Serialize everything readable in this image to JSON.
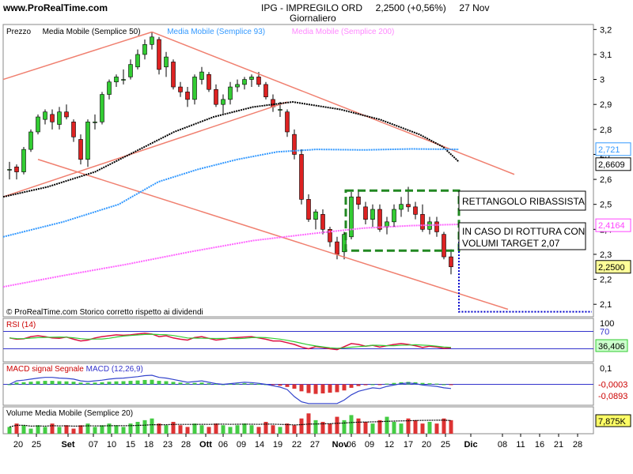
{
  "header": {
    "site": "www.ProRealTime.com",
    "ticker_line": "IPG - IMPREGILO ORD     2,2500 (+0,56%)     27 Nov",
    "period": "Giornaliero"
  },
  "main_panel": {
    "legend": [
      {
        "text": "Prezzo",
        "color": "#000000"
      },
      {
        "text": "Media Mobile (Semplice 50)",
        "color": "#000000"
      },
      {
        "text": "Media Mobile (Semplice 93)",
        "color": "#3399ff"
      },
      {
        "text": "Media Mobile (Semplice 200)",
        "color": "#ff88ff"
      }
    ],
    "footer_note": "© ProRealTime.com  Storico corretto rispetto ai dividendi",
    "annotation_1": "RETTANGOLO RIBASSISTA",
    "annotation_2": "IN CASO DI ROTTURA CON VOLUMI TARGET 2,07",
    "y_ticks": [
      "3,2",
      "3,1",
      "3",
      "2,9",
      "2,8",
      "2,7",
      "2,6",
      "2,5",
      "2,4",
      "2,3",
      "2,2",
      "2,1"
    ],
    "price_tags": [
      {
        "text": "2,721",
        "color": "#3399ff"
      },
      {
        "text": "2,6609",
        "color": "#000000"
      },
      {
        "text": "2,4164",
        "color": "#ff44ff"
      },
      {
        "text": "2,2500",
        "color": "#000000"
      }
    ]
  },
  "rsi_panel": {
    "title": "RSI (14)",
    "ticks": [
      "100",
      "70",
      "36,406"
    ]
  },
  "macd_panel": {
    "title_parts": [
      "MACD signal ",
      "Segnale",
      " MACD (12,26,9)"
    ],
    "ticks": [
      "0,1",
      "-0,0003",
      "-0,0893"
    ]
  },
  "volume_panel": {
    "title": "Volume  Media Mobile (Semplice 20)",
    "ticks": [
      "7,875K"
    ]
  },
  "x_axis": {
    "labels": [
      "20",
      "25",
      "Set",
      "07",
      "10",
      "15",
      "18",
      "23",
      "28",
      "Ott",
      "06",
      "09",
      "14",
      "19",
      "22",
      "27",
      "Nov",
      "06",
      "09",
      "12",
      "17",
      "20",
      "25",
      "Dic",
      "08",
      "11",
      "16",
      "21",
      "28"
    ]
  },
  "chart_data": {
    "type": "candlestick",
    "title": "IPG - IMPREGILO ORD",
    "ylim": [
      2.05,
      3.22
    ],
    "last_price": 2.25,
    "moving_averages": {
      "sma50": 2.6609,
      "sma93": 2.721,
      "sma200": 2.4164
    },
    "rsi14": 36.406,
    "rsi_levels": [
      70,
      30
    ],
    "macd": {
      "line": -0.0003,
      "signal": -0.0893
    },
    "volume_sma20": "7,875K",
    "target": 2.07,
    "candles": [
      [
        2.64,
        2.67,
        2.6,
        2.64
      ],
      [
        2.65,
        2.66,
        2.6,
        2.63
      ],
      [
        2.63,
        2.73,
        2.62,
        2.72
      ],
      [
        2.72,
        2.8,
        2.71,
        2.79
      ],
      [
        2.79,
        2.86,
        2.78,
        2.85
      ],
      [
        2.84,
        2.88,
        2.82,
        2.87
      ],
      [
        2.86,
        2.88,
        2.8,
        2.83
      ],
      [
        2.82,
        2.89,
        2.8,
        2.87
      ],
      [
        2.87,
        2.9,
        2.84,
        2.85
      ],
      [
        2.83,
        2.84,
        2.75,
        2.77
      ],
      [
        2.76,
        2.78,
        2.66,
        2.68
      ],
      [
        2.68,
        2.84,
        2.65,
        2.83
      ],
      [
        2.83,
        2.86,
        2.8,
        2.83
      ],
      [
        2.83,
        2.95,
        2.82,
        2.94
      ],
      [
        2.94,
        3.0,
        2.92,
        2.99
      ],
      [
        2.99,
        3.02,
        2.97,
        3.01
      ],
      [
        3.0,
        3.04,
        2.98,
        3.0
      ],
      [
        3.01,
        3.08,
        3.0,
        3.06
      ],
      [
        3.05,
        3.12,
        3.04,
        3.1
      ],
      [
        3.1,
        3.16,
        3.08,
        3.14
      ],
      [
        3.14,
        3.19,
        3.12,
        3.17
      ],
      [
        3.16,
        3.17,
        3.02,
        3.04
      ],
      [
        3.05,
        3.11,
        3.01,
        3.09
      ],
      [
        3.07,
        3.08,
        2.96,
        2.97
      ],
      [
        2.97,
        2.99,
        2.93,
        2.95
      ],
      [
        2.95,
        2.97,
        2.89,
        2.92
      ],
      [
        2.92,
        3.02,
        2.9,
        3.01
      ],
      [
        3.0,
        3.05,
        2.98,
        3.03
      ],
      [
        3.02,
        3.03,
        2.95,
        2.96
      ],
      [
        2.96,
        2.98,
        2.89,
        2.9
      ],
      [
        2.9,
        2.94,
        2.86,
        2.92
      ],
      [
        2.92,
        2.99,
        2.9,
        2.97
      ],
      [
        2.97,
        3.0,
        2.95,
        2.98
      ],
      [
        2.98,
        3.01,
        2.96,
        3.0
      ],
      [
        3.0,
        3.02,
        2.97,
        3.01
      ],
      [
        3.01,
        3.03,
        2.97,
        2.98
      ],
      [
        2.98,
        2.99,
        2.92,
        2.93
      ],
      [
        2.92,
        2.94,
        2.87,
        2.89
      ],
      [
        2.88,
        2.91,
        2.85,
        2.88
      ],
      [
        2.87,
        2.88,
        2.77,
        2.79
      ],
      [
        2.78,
        2.8,
        2.68,
        2.7
      ],
      [
        2.7,
        2.72,
        2.5,
        2.52
      ],
      [
        2.52,
        2.54,
        2.43,
        2.44
      ],
      [
        2.44,
        2.48,
        2.4,
        2.47
      ],
      [
        2.46,
        2.48,
        2.38,
        2.4
      ],
      [
        2.4,
        2.41,
        2.33,
        2.35
      ],
      [
        2.35,
        2.37,
        2.28,
        2.3
      ],
      [
        2.31,
        2.39,
        2.28,
        2.38
      ],
      [
        2.37,
        2.55,
        2.36,
        2.53
      ],
      [
        2.53,
        2.56,
        2.48,
        2.5
      ],
      [
        2.49,
        2.51,
        2.42,
        2.44
      ],
      [
        2.44,
        2.5,
        2.41,
        2.48
      ],
      [
        2.48,
        2.5,
        2.39,
        2.4
      ],
      [
        2.41,
        2.45,
        2.38,
        2.43
      ],
      [
        2.43,
        2.5,
        2.41,
        2.48
      ],
      [
        2.48,
        2.53,
        2.45,
        2.5
      ],
      [
        2.5,
        2.57,
        2.47,
        2.49
      ],
      [
        2.49,
        2.51,
        2.44,
        2.46
      ],
      [
        2.46,
        2.5,
        2.39,
        2.4
      ],
      [
        2.4,
        2.45,
        2.38,
        2.43
      ],
      [
        2.43,
        2.45,
        2.37,
        2.39
      ],
      [
        2.38,
        2.39,
        2.28,
        2.29
      ],
      [
        2.29,
        2.32,
        2.22,
        2.25
      ]
    ]
  }
}
